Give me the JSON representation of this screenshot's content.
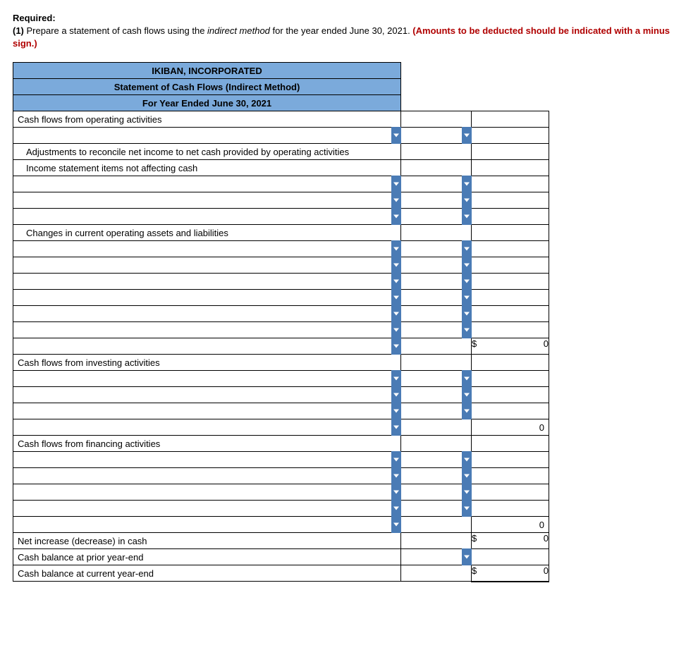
{
  "instructions": {
    "required_label": "Required:",
    "item_no": "(1)",
    "text_before_italic": " Prepare a statement of cash flows using the ",
    "italic_text": "indirect method",
    "text_after_italic": " for the year ended June 30, 2021. ",
    "red_text": "(Amounts to be deducted should be indicated with a minus sign.)"
  },
  "table": {
    "header1": "IKIBAN, INCORPORATED",
    "header2": "Statement of Cash Flows (Indirect Method)",
    "header3": "For Year Ended June 30, 2021",
    "sections": {
      "op_header": "Cash flows from operating activities",
      "adj_header": "Adjustments to reconcile net income to net cash provided by operating activities",
      "adj_sub": "Income statement items not affecting cash",
      "changes_header": "Changes in current operating assets and liabilities",
      "inv_header": "Cash flows from investing activities",
      "fin_header": "Cash flows from financing activities",
      "net_change": "Net increase (decrease) in cash",
      "prior": "Cash balance at prior year-end",
      "current": "Cash balance at current year-end"
    },
    "vals": {
      "op_total_sym": "$",
      "op_total_val": "0",
      "inv_total_val": "0",
      "fin_sub_val": "0",
      "net_sym": "$",
      "net_val": "0",
      "end_sym": "$",
      "end_val": "0"
    }
  }
}
